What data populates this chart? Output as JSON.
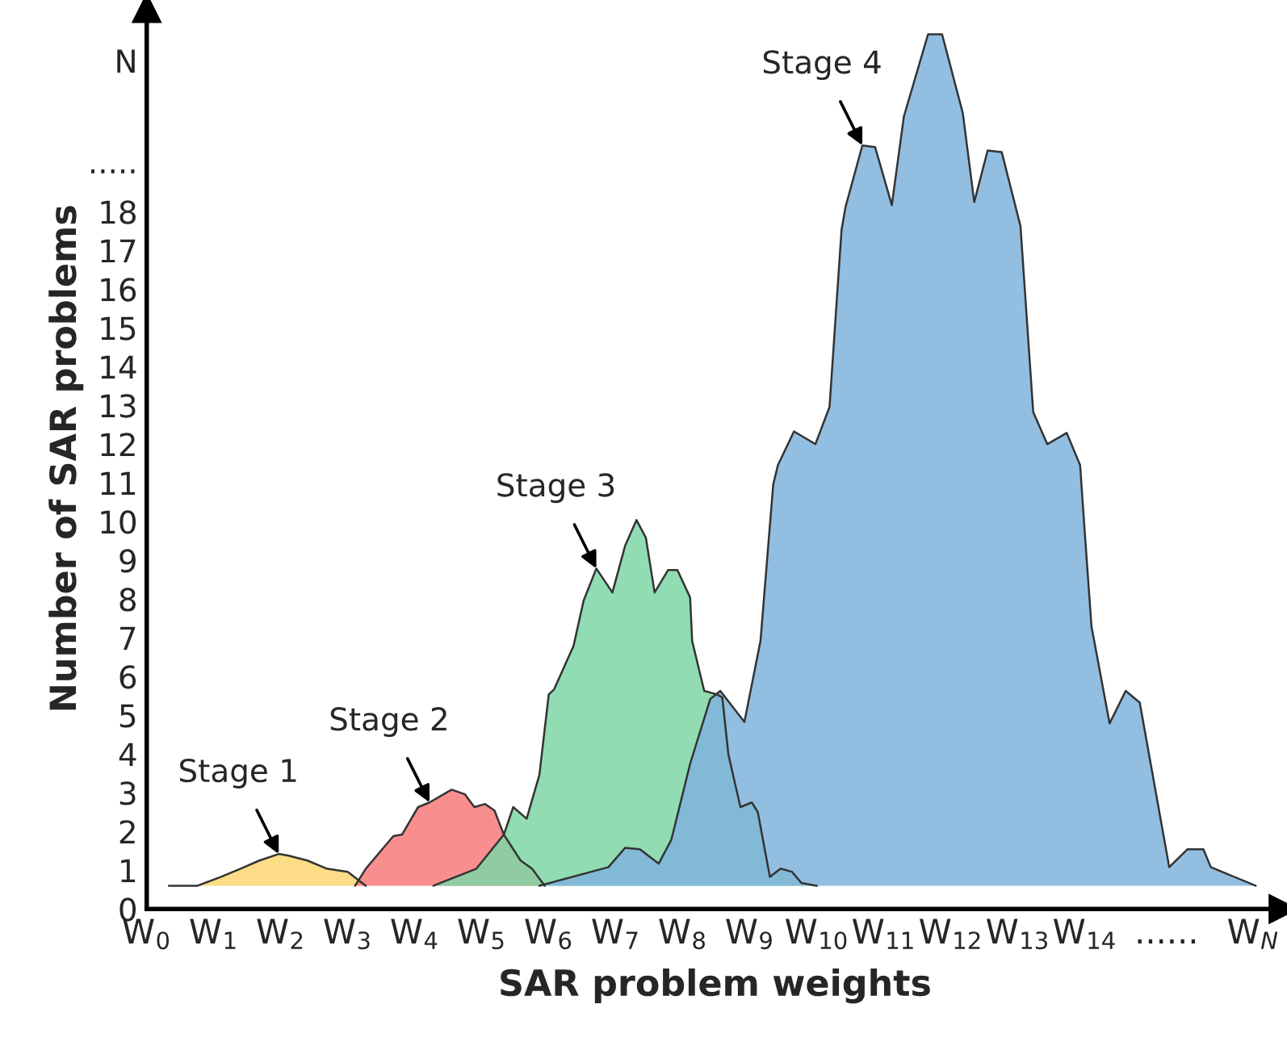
{
  "chart_data": {
    "type": "area",
    "xlabel": "SAR problem weights",
    "ylabel": "Number of SAR problems",
    "xlim": [
      0,
      16.96
    ],
    "ylim": [
      0,
      23.25
    ],
    "xticks": [
      {
        "value": 0,
        "label": "W$_{0}$"
      },
      {
        "value": 1,
        "label": "W$_{1}$"
      },
      {
        "value": 2,
        "label": "W$_{2}$"
      },
      {
        "value": 3,
        "label": "W$_{3}$"
      },
      {
        "value": 4,
        "label": "W$_{4}$"
      },
      {
        "value": 5,
        "label": "W$_{5}$"
      },
      {
        "value": 6,
        "label": "W$_{6}$"
      },
      {
        "value": 7,
        "label": "W$_{7}$"
      },
      {
        "value": 8,
        "label": "W$_{8}$"
      },
      {
        "value": 9,
        "label": "W$_{9}$"
      },
      {
        "value": 10,
        "label": "W$_{10}$"
      },
      {
        "value": 11,
        "label": "W$_{11}$"
      },
      {
        "value": 12,
        "label": "W$_{12}$"
      },
      {
        "value": 13,
        "label": "W$_{13}$"
      },
      {
        "value": 14,
        "label": "W$_{14}$"
      },
      {
        "value": 15.22,
        "label": "......"
      },
      {
        "value": 16.51,
        "label": "W$_{N}$"
      }
    ],
    "yticks": [
      0,
      1,
      2,
      3,
      4,
      5,
      6,
      7,
      8,
      9,
      10,
      11,
      12,
      13,
      14,
      15,
      16,
      17,
      18,
      {
        "value": 19.3,
        "label": "....."
      },
      {
        "value": 21.9,
        "label": "N"
      }
    ],
    "series": [
      {
        "color": "#fcd672",
        "x": [
          0.33,
          0.76,
          1.11,
          1.4,
          1.68,
          1.97,
          2.11,
          2.4,
          2.69,
          3.0,
          3.27
        ],
        "values": [
          0.6,
          0.6,
          0.83,
          1.04,
          1.25,
          1.42,
          1.38,
          1.25,
          1.04,
          0.96,
          0.6
        ]
      },
      {
        "color": "#f77a7a",
        "x": [
          3.11,
          3.27,
          3.68,
          3.81,
          4.05,
          4.22,
          4.55,
          4.75,
          4.89,
          5.05,
          5.19,
          5.33,
          5.58,
          5.75,
          5.94
        ],
        "values": [
          0.6,
          1.04,
          1.88,
          1.92,
          2.63,
          2.75,
          3.08,
          2.96,
          2.63,
          2.71,
          2.54,
          1.92,
          1.25,
          1.04,
          0.6
        ]
      },
      {
        "color": "#7ed6a5",
        "x": [
          4.28,
          4.92,
          5.33,
          5.47,
          5.67,
          5.86,
          6.0,
          6.08,
          6.37,
          6.52,
          6.71,
          6.95,
          7.14,
          7.31,
          7.45,
          7.58,
          7.78,
          7.92,
          8.11,
          8.14,
          8.32,
          8.51,
          8.59,
          8.68,
          8.86,
          9.03,
          9.12,
          9.3,
          9.46,
          9.63,
          9.77,
          10.0
        ],
        "values": [
          0.6,
          1.04,
          1.92,
          2.63,
          2.33,
          3.46,
          5.54,
          5.67,
          6.79,
          7.96,
          8.79,
          8.17,
          9.38,
          10.04,
          9.58,
          8.17,
          8.75,
          8.75,
          8.04,
          6.92,
          5.63,
          5.54,
          5.46,
          4.0,
          2.63,
          2.75,
          2.5,
          0.83,
          1.04,
          0.96,
          0.67,
          0.6
        ]
      },
      {
        "color": "#7fb3dc",
        "x": [
          5.86,
          6.89,
          7.14,
          7.36,
          7.64,
          7.83,
          8.11,
          8.41,
          8.56,
          8.92,
          9.16,
          9.35,
          9.42,
          9.66,
          9.98,
          10.19,
          10.37,
          10.43,
          10.68,
          10.87,
          11.12,
          11.3,
          11.66,
          11.87,
          12.18,
          12.35,
          12.55,
          12.76,
          13.04,
          13.23,
          13.44,
          13.73,
          13.93,
          14.0,
          14.1,
          14.37,
          14.61,
          14.82,
          15.26,
          15.53,
          15.77,
          15.88,
          16.55
        ],
        "values": [
          0.6,
          1.08,
          1.58,
          1.54,
          1.17,
          1.79,
          3.75,
          5.42,
          5.63,
          4.83,
          6.92,
          10.96,
          11.46,
          12.33,
          12.0,
          12.96,
          17.54,
          18.13,
          19.71,
          19.67,
          18.17,
          20.46,
          22.58,
          22.58,
          20.54,
          18.25,
          19.58,
          19.54,
          17.63,
          12.83,
          12.0,
          12.29,
          11.46,
          9.71,
          7.29,
          4.79,
          5.63,
          5.33,
          1.08,
          1.54,
          1.54,
          1.08,
          0.6
        ]
      }
    ],
    "annotations": [
      {
        "text": "Stage 1",
        "x": 1.97,
        "y": 1.42
      },
      {
        "text": "Stage 2",
        "x": 4.22,
        "y": 2.75
      },
      {
        "text": "Stage 3",
        "x": 6.71,
        "y": 8.79
      },
      {
        "text": "Stage 4",
        "x": 10.68,
        "y": 19.71
      }
    ]
  }
}
